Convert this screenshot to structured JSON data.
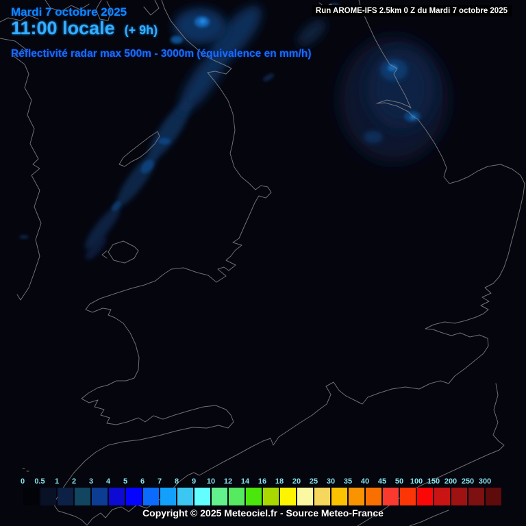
{
  "header": {
    "date": "Mardi 7 octobre 2025",
    "local_time": "11:00 locale",
    "forecast_offset": "(+ 9h)",
    "run_label": "Run AROME-IFS 2.5km 0 Z du Mardi 7 octobre 2025",
    "product_title": "Réflectivité radar max 500m - 3000m (équivalence en mm/h)"
  },
  "legend": {
    "values": [
      "0",
      "0.5",
      "1",
      "2",
      "3",
      "4",
      "5",
      "6",
      "7",
      "8",
      "9",
      "10",
      "12",
      "14",
      "16",
      "18",
      "20",
      "25",
      "30",
      "35",
      "40",
      "45",
      "50",
      "100",
      "150",
      "200",
      "250",
      "300"
    ],
    "colors": [
      "#020209",
      "#091126",
      "#0d2045",
      "#12455f",
      "#0d3d92",
      "#0d0bd1",
      "#0505ff",
      "#0a6bfc",
      "#12a0fc",
      "#3cc6f2",
      "#63feff",
      "#63f18d",
      "#55ea60",
      "#4ae60c",
      "#a8d800",
      "#fdf500",
      "#faf8a2",
      "#f5d75e",
      "#fcc200",
      "#fa9300",
      "#f97000",
      "#fa3a2e",
      "#fb3505",
      "#fb0707",
      "#c91414",
      "#9e1212",
      "#7d1010",
      "#5e0b0b"
    ],
    "label_color": "#86e3ec"
  },
  "footer": {
    "copyright": "Copyright © 2025 Meteociel.fr - Source Meteo-France"
  },
  "colors": {
    "background": "#05050e",
    "coastline": "#848484",
    "date_text": "#0f86fa",
    "time_text": "#38acff",
    "subtitle_text": "#1a6cf5",
    "run_text": "#ffffff",
    "copyright_text": "#ffffff"
  }
}
